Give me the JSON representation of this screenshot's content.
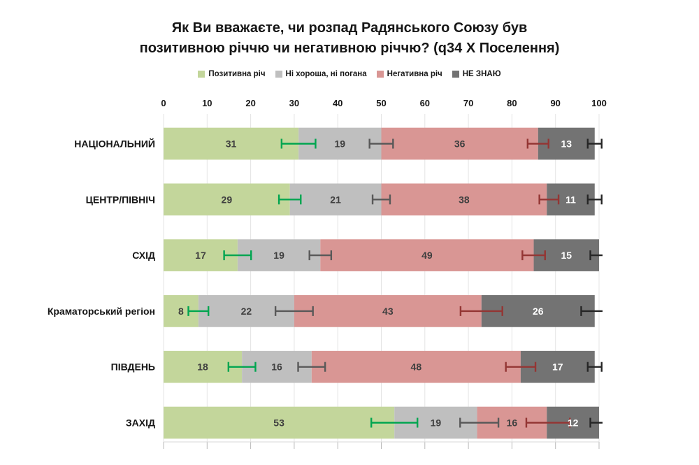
{
  "title": {
    "line1": "Як Ви вважаєте, чи розпад Радянського Союзу був",
    "line2": "позитивною річчю чи негативною річчю? (q34 X Поселення)"
  },
  "legend": [
    {
      "label": "Позитивна річ",
      "color": "#c3d69b"
    },
    {
      "label": "Ні хороша, ні погана",
      "color": "#bfbfbf"
    },
    {
      "label": "Негативна річ",
      "color": "#d99694"
    },
    {
      "label": "НЕ ЗНАЮ",
      "color": "#737373"
    }
  ],
  "chart_data": {
    "type": "bar",
    "stacked": true,
    "orientation": "horizontal",
    "title": "Як Ви вважаєте, чи розпад Радянського Союзу був позитивною річчю чи негативною річчю? (q34 X Поселення)",
    "xlim": [
      0,
      100
    ],
    "ticks": [
      0,
      10,
      20,
      30,
      40,
      50,
      60,
      70,
      80,
      90,
      100
    ],
    "axis_position": "top",
    "grid": true,
    "legend_position": "top",
    "categories": [
      "НАЦІОНАЛЬНИЙ",
      "ЦЕНТР/ПІВНІЧ",
      "СХІД",
      "Краматорський регіон",
      "ПІВДЕНЬ",
      "ЗАХІД"
    ],
    "series": [
      {
        "name": "Позитивна річ",
        "color": "#c3d69b",
        "label_color": "#3f3f3f",
        "values": [
          31,
          29,
          17,
          8,
          18,
          53
        ]
      },
      {
        "name": "Ні хороша, ні погана",
        "color": "#bfbfbf",
        "label_color": "#3f3f3f",
        "values": [
          19,
          21,
          19,
          22,
          16,
          19
        ]
      },
      {
        "name": "Негативна річ",
        "color": "#d99694",
        "label_color": "#3f3f3f",
        "values": [
          36,
          38,
          49,
          43,
          48,
          16
        ]
      },
      {
        "name": "НЕ ЗНАЮ",
        "color": "#737373",
        "label_color": "#ffffff",
        "values": [
          13,
          11,
          15,
          26,
          17,
          12
        ]
      }
    ],
    "error_bars": [
      {
        "boundary_after": "Позитивна річ",
        "color": "#00a550",
        "centers": [
          31,
          29,
          17,
          8,
          18,
          53
        ],
        "half_widths": [
          3.9,
          2.5,
          3.1,
          2.3,
          3.1,
          5.3
        ]
      },
      {
        "boundary_after": "Ні хороша, ні погана",
        "color": "#595959",
        "centers": [
          50,
          50,
          36,
          30,
          34,
          72.5
        ],
        "half_widths": [
          2.7,
          2.0,
          2.5,
          4.3,
          3.1,
          4.4
        ]
      },
      {
        "boundary_after": "Негативна річ",
        "color": "#943634",
        "centers": [
          86,
          88.5,
          85,
          73,
          82,
          88.3
        ],
        "half_widths": [
          2.4,
          2.2,
          2.6,
          4.8,
          3.4,
          5.0
        ]
      },
      {
        "boundary_after": "НЕ ЗНАЮ",
        "color": "#262626",
        "centers": [
          99,
          99,
          100,
          99,
          99,
          100
        ],
        "half_widths": [
          1.6,
          1.6,
          2.0,
          3.1,
          1.6,
          2.0
        ]
      }
    ],
    "row_totals": [
      99,
      99,
      100,
      99,
      99,
      100
    ]
  },
  "style": {
    "gridline_color": "#e4e4e4",
    "tick_color": "#b9b9b9",
    "axis_line_color": "#d9d9d9",
    "text_color": "#161616",
    "value_label_color": "#3f3f3f"
  }
}
